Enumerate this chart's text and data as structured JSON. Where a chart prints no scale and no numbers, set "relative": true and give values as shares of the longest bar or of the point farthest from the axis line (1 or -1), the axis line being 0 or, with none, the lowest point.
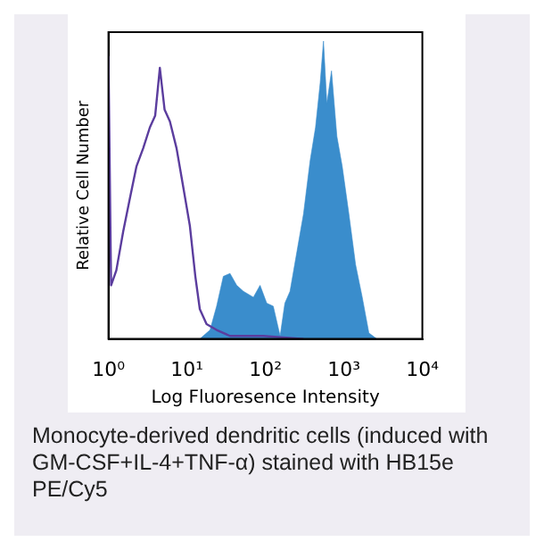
{
  "chart_data": {
    "type": "area",
    "xlabel": "Log Fluoresence Intensity",
    "ylabel": "Relative Cell Number",
    "relative": true,
    "log": "x",
    "xlim": [
      1,
      10000
    ],
    "xticks": [
      {
        "value": 1,
        "label": "10⁰"
      },
      {
        "value": 10,
        "label": "10¹"
      },
      {
        "value": 100,
        "label": "10²"
      },
      {
        "value": 1000,
        "label": "10³"
      },
      {
        "value": 10000,
        "label": "10⁴"
      }
    ],
    "grid": false,
    "legend": false,
    "marker": "none",
    "series": [
      {
        "type": "line",
        "color": "#5b3d9e",
        "x": [
          1,
          1.08,
          1.26,
          1.54,
          1.87,
          2.28,
          2.77,
          3.37,
          3.94,
          4.52,
          5.19,
          6.07,
          7.38,
          8.98,
          10.9,
          12.8,
          14.6,
          17.8,
          23.9,
          35.4,
          94,
          306
        ],
        "values": [
          0.95,
          0.18,
          0.23,
          0.36,
          0.47,
          0.58,
          0.64,
          0.71,
          0.75,
          0.91,
          0.77,
          0.73,
          0.64,
          0.51,
          0.38,
          0.21,
          0.1,
          0.05,
          0.03,
          0.01,
          0.01,
          0
        ]
      },
      {
        "color": "#3a8dcc",
        "x": [
          14.6,
          19.7,
          23.9,
          29.1,
          35.4,
          43.1,
          52.4,
          70.3,
          85.5,
          104,
          126,
          154,
          177,
          206,
          251,
          306,
          372,
          435,
          499,
          550,
          607,
          696,
          815,
          952,
          1158,
          1409,
          1714,
          2084,
          2637
        ],
        "values": [
          0,
          0.03,
          0.11,
          0.21,
          0.22,
          0.18,
          0.16,
          0.14,
          0.18,
          0.12,
          0.11,
          0.01,
          0.12,
          0.16,
          0.29,
          0.42,
          0.6,
          0.71,
          0.86,
          1,
          0.79,
          0.9,
          0.68,
          0.58,
          0.42,
          0.25,
          0.14,
          0.02,
          0
        ]
      }
    ],
    "annotations": [
      "Monocyte-derived dendritic cells (induced with GM-CSF+IL-4+TNF-α) stained with HB15e PE/Cy5"
    ]
  }
}
